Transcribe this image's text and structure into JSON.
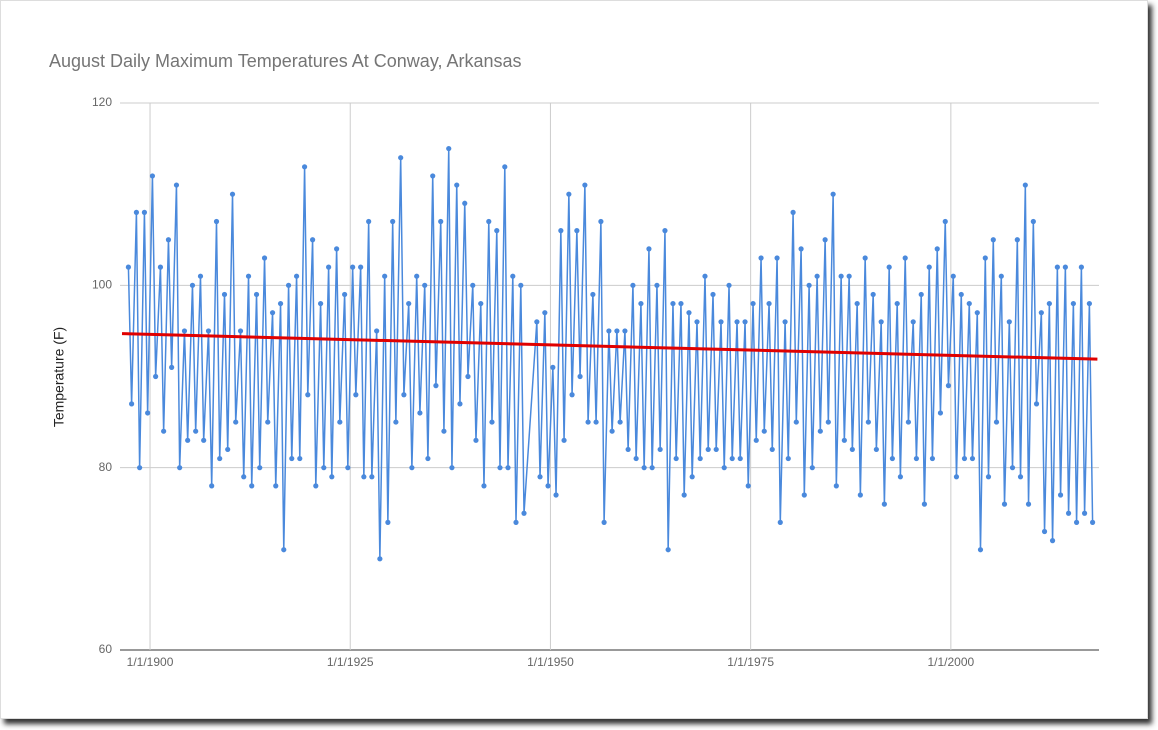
{
  "chart_data": {
    "type": "line",
    "title": "August Daily Maximum Temperatures At Conway, Arkansas",
    "y_label": "Temperature (F)",
    "xlim": [
      1896.25,
      2018.5
    ],
    "xticks": [
      {
        "value": 1900,
        "label": "1/1/1900"
      },
      {
        "value": 1925,
        "label": "1/1/1925"
      },
      {
        "value": 1950,
        "label": "1/1/1950"
      },
      {
        "value": 1975,
        "label": "1/1/1975"
      },
      {
        "value": 2000,
        "label": "1/1/2000"
      }
    ],
    "ylim": [
      60,
      120
    ],
    "yticks": [
      60,
      80,
      100,
      120
    ],
    "grid": true,
    "x": [
      1897.3,
      1897.7,
      1898.3,
      1898.7,
      1899.3,
      1899.7,
      1900.3,
      1900.7,
      1901.3,
      1901.7,
      1902.3,
      1902.7,
      1903.3,
      1903.7,
      1904.3,
      1904.7,
      1905.3,
      1905.7,
      1906.3,
      1906.7,
      1907.3,
      1907.7,
      1908.3,
      1908.7,
      1909.3,
      1909.7,
      1910.3,
      1910.7,
      1911.3,
      1911.7,
      1912.3,
      1912.7,
      1913.3,
      1913.7,
      1914.3,
      1914.7,
      1915.3,
      1915.7,
      1916.3,
      1916.7,
      1917.3,
      1917.7,
      1918.3,
      1918.7,
      1919.3,
      1919.7,
      1920.3,
      1920.7,
      1921.3,
      1921.7,
      1922.3,
      1922.7,
      1923.3,
      1923.7,
      1924.3,
      1924.7,
      1925.3,
      1925.7,
      1926.3,
      1926.7,
      1927.3,
      1927.7,
      1928.3,
      1928.7,
      1929.3,
      1929.7,
      1930.3,
      1930.7,
      1931.3,
      1931.7,
      1932.3,
      1932.7,
      1933.3,
      1933.7,
      1934.3,
      1934.7,
      1935.3,
      1935.7,
      1936.3,
      1936.7,
      1937.3,
      1937.7,
      1938.3,
      1938.7,
      1939.3,
      1939.7,
      1940.3,
      1940.7,
      1941.3,
      1941.7,
      1942.3,
      1942.7,
      1943.3,
      1943.7,
      1944.3,
      1944.7,
      1945.3,
      1945.7,
      1946.3,
      1946.7,
      1948.3,
      1948.7,
      1949.3,
      1949.7,
      1950.3,
      1950.7,
      1951.3,
      1951.7,
      1952.3,
      1952.7,
      1953.3,
      1953.7,
      1954.3,
      1954.7,
      1955.3,
      1955.7,
      1956.3,
      1956.7,
      1957.3,
      1957.7,
      1958.3,
      1958.7,
      1959.3,
      1959.7,
      1960.3,
      1960.7,
      1961.3,
      1961.7,
      1962.3,
      1962.7,
      1963.3,
      1963.7,
      1964.3,
      1964.7,
      1965.3,
      1965.7,
      1966.3,
      1966.7,
      1967.3,
      1967.7,
      1968.3,
      1968.7,
      1969.3,
      1969.7,
      1970.3,
      1970.7,
      1971.3,
      1971.7,
      1972.3,
      1972.7,
      1973.3,
      1973.7,
      1974.3,
      1974.7,
      1975.3,
      1975.7,
      1976.3,
      1976.7,
      1977.3,
      1977.7,
      1978.3,
      1978.7,
      1979.3,
      1979.7,
      1980.3,
      1980.7,
      1981.3,
      1981.7,
      1982.3,
      1982.7,
      1983.3,
      1983.7,
      1984.3,
      1984.7,
      1985.3,
      1985.7,
      1986.3,
      1986.7,
      1987.3,
      1987.7,
      1988.3,
      1988.7,
      1989.3,
      1989.7,
      1990.3,
      1990.7,
      1991.3,
      1991.7,
      1992.3,
      1992.7,
      1993.3,
      1993.7,
      1994.3,
      1994.7,
      1995.3,
      1995.7,
      1996.3,
      1996.7,
      1997.3,
      1997.7,
      1998.3,
      1998.7,
      1999.3,
      1999.7,
      2000.3,
      2000.7,
      2001.3,
      2001.7,
      2002.3,
      2002.7,
      2003.3,
      2003.7,
      2004.3,
      2004.7,
      2005.3,
      2005.7,
      2006.3,
      2006.7,
      2007.3,
      2007.7,
      2008.3,
      2008.7,
      2009.3,
      2009.7,
      2010.3,
      2010.7,
      2011.3,
      2011.7,
      2012.3,
      2012.7,
      2013.3,
      2013.7,
      2014.3,
      2014.7,
      2015.3,
      2015.7,
      2016.3,
      2016.7,
      2017.3,
      2017.7
    ],
    "series": [
      {
        "color": "#4a89dc",
        "values": [
          102,
          87,
          108,
          80,
          108,
          86,
          112,
          90,
          102,
          84,
          105,
          91,
          111,
          80,
          95,
          83,
          100,
          84,
          101,
          83,
          95,
          78,
          107,
          81,
          99,
          82,
          110,
          85,
          95,
          79,
          101,
          78,
          99,
          80,
          103,
          85,
          97,
          78,
          98,
          71,
          100,
          81,
          101,
          81,
          113,
          88,
          105,
          78,
          98,
          80,
          102,
          79,
          104,
          85,
          99,
          80,
          102,
          88,
          102,
          79,
          107,
          79,
          95,
          70,
          101,
          74,
          107,
          85,
          114,
          88,
          98,
          80,
          101,
          86,
          100,
          81,
          112,
          89,
          107,
          84,
          115,
          80,
          111,
          87,
          109,
          90,
          100,
          83,
          98,
          78,
          107,
          85,
          106,
          80,
          113,
          80,
          101,
          74,
          100,
          75,
          96,
          79,
          97,
          78,
          91,
          77,
          106,
          83,
          110,
          88,
          106,
          90,
          111,
          85,
          99,
          85,
          107,
          74,
          95,
          84,
          95,
          85,
          95,
          82,
          100,
          81,
          98,
          80,
          104,
          80,
          100,
          82,
          106,
          71,
          98,
          81,
          98,
          77,
          97,
          79,
          96,
          81,
          101,
          82,
          99,
          82,
          96,
          80,
          100,
          81,
          96,
          81,
          96,
          78,
          98,
          83,
          103,
          84,
          98,
          82,
          103,
          74,
          96,
          81,
          108,
          85,
          104,
          77,
          100,
          80,
          101,
          84,
          105,
          85,
          110,
          78,
          101,
          83,
          101,
          82,
          98,
          77,
          103,
          85,
          99,
          82,
          96,
          76,
          102,
          81,
          98,
          79,
          103,
          85,
          96,
          81,
          99,
          76,
          102,
          81,
          104,
          86,
          107,
          89,
          101,
          79,
          99,
          81,
          98,
          81,
          97,
          71,
          103,
          79,
          105,
          85,
          101,
          76,
          96,
          80,
          105,
          79,
          111,
          76,
          107,
          87,
          97,
          73,
          98,
          72,
          102,
          77,
          102,
          75,
          98,
          74,
          102,
          75,
          98,
          74
        ]
      },
      {
        "color": "#e00000",
        "x": [
          1896.5,
          2018.3
        ],
        "values": [
          94.7,
          91.9
        ]
      }
    ]
  }
}
